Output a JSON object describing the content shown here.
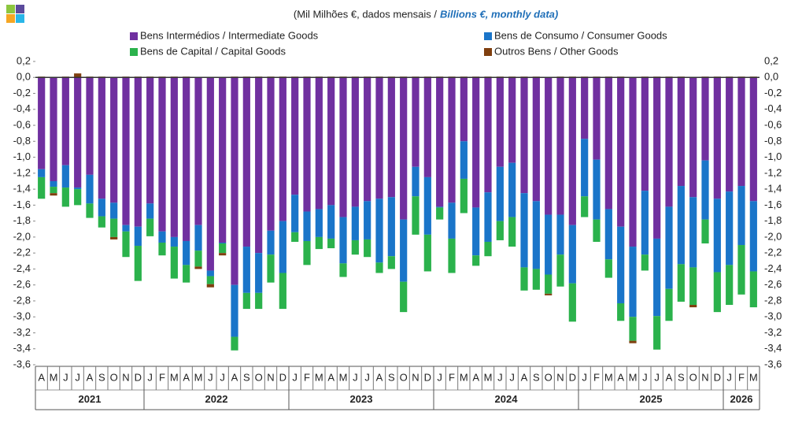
{
  "chart_data": {
    "type": "stacked-bar",
    "subtitle": "(Mil Milhões €, dados mensais /",
    "subtitle_en": "Billions €, monthly data)",
    "categories": [
      "A",
      "M",
      "J",
      "J",
      "A",
      "S",
      "O",
      "N",
      "D",
      "J",
      "F",
      "M",
      "A",
      "M",
      "J",
      "J",
      "A",
      "S",
      "O",
      "N",
      "D",
      "J",
      "F",
      "M",
      "A",
      "M",
      "J",
      "J",
      "A",
      "S",
      "O",
      "N",
      "D",
      "J",
      "F",
      "M",
      "A",
      "M",
      "J",
      "J",
      "A",
      "S",
      "O",
      "N",
      "D",
      "J",
      "F",
      "M",
      "A",
      "M",
      "J",
      "J",
      "A",
      "S",
      "O",
      "N",
      "D",
      "J",
      "F",
      "M"
    ],
    "years": [
      "2021",
      "2022",
      "2023",
      "2024",
      "2025",
      "2026"
    ],
    "series": [
      {
        "name": "Bens Intermédios / Intermediate Goods",
        "color": "#7030a0",
        "values": [
          -1.15,
          -1.3,
          -1.1,
          -1.38,
          -1.22,
          -1.52,
          -1.57,
          -1.85,
          -1.87,
          -1.58,
          -1.93,
          -2.0,
          -2.05,
          -1.85,
          -2.42,
          -2.07,
          -2.6,
          -2.12,
          -2.2,
          -1.92,
          -1.8,
          -1.47,
          -1.68,
          -1.65,
          -1.6,
          -1.75,
          -1.62,
          -1.55,
          -1.52,
          -1.5,
          -1.78,
          -1.12,
          -1.25,
          -1.62,
          -1.57,
          -0.8,
          -1.63,
          -1.44,
          -1.12,
          -1.07,
          -1.45,
          -1.55,
          -1.72,
          -1.72,
          -1.85,
          -0.77,
          -1.03,
          -1.65,
          -1.87,
          -2.12,
          -1.42,
          -2.02,
          -1.62,
          -1.36,
          -1.5,
          -1.04,
          -1.52,
          -1.43,
          -1.36,
          -1.55
        ]
      },
      {
        "name": "Bens de Consumo / Consumer Goods",
        "color": "#1a75c9",
        "values": [
          -0.1,
          -0.07,
          -0.28,
          -0.02,
          -0.36,
          -0.22,
          -0.2,
          -0.08,
          -0.24,
          -0.19,
          -0.14,
          -0.12,
          -0.3,
          -0.32,
          -0.07,
          -0.01,
          -0.65,
          -0.58,
          -0.5,
          -0.3,
          -0.65,
          -0.47,
          -0.37,
          -0.35,
          -0.42,
          -0.58,
          -0.42,
          -0.48,
          -0.8,
          -0.74,
          -0.78,
          -0.37,
          -0.72,
          -0.01,
          -0.45,
          -0.47,
          -0.6,
          -0.62,
          -0.68,
          -0.68,
          -0.93,
          -0.85,
          -0.75,
          -0.5,
          -0.73,
          -0.72,
          -0.75,
          -0.63,
          -0.96,
          -0.88,
          -0.8,
          -0.97,
          -1.03,
          -0.98,
          -0.88,
          -0.74,
          -0.92,
          -0.92,
          -0.74,
          -0.88
        ]
      },
      {
        "name": "Bens de Capital / Capital Goods",
        "color": "#2bb24c",
        "values": [
          -0.27,
          -0.08,
          -0.24,
          -0.2,
          -0.18,
          -0.14,
          -0.23,
          -0.32,
          -0.44,
          -0.22,
          -0.16,
          -0.4,
          -0.22,
          -0.2,
          -0.1,
          -0.12,
          -0.17,
          -0.2,
          -0.2,
          -0.35,
          -0.45,
          -0.12,
          -0.3,
          -0.15,
          -0.12,
          -0.17,
          -0.18,
          -0.22,
          -0.13,
          -0.16,
          -0.38,
          -0.48,
          -0.46,
          -0.15,
          -0.43,
          -0.43,
          -0.13,
          -0.18,
          -0.24,
          -0.37,
          -0.29,
          -0.26,
          -0.24,
          -0.4,
          -0.48,
          -0.26,
          -0.28,
          -0.23,
          -0.22,
          -0.3,
          -0.2,
          -0.42,
          -0.4,
          -0.47,
          -0.47,
          -0.3,
          -0.5,
          -0.5,
          -0.62,
          -0.45
        ]
      },
      {
        "name": "Outros Bens / Other Goods",
        "color": "#7f3f0f",
        "values": [
          0.01,
          -0.03,
          0.01,
          0.05,
          0.01,
          0.01,
          -0.03,
          0.01,
          0.01,
          0.01,
          0.01,
          0.01,
          0.01,
          -0.03,
          -0.04,
          -0.03,
          0.01,
          0.01,
          0.01,
          0.01,
          0.01,
          0.01,
          0.01,
          0.01,
          0.01,
          0.01,
          0.01,
          0.01,
          0.01,
          0.01,
          0.01,
          0.01,
          0.01,
          0.01,
          0.01,
          0.01,
          0.01,
          0.01,
          0.01,
          0.01,
          0.01,
          0.01,
          -0.02,
          0.01,
          0.01,
          0.01,
          0.01,
          0.01,
          0.01,
          -0.03,
          0.01,
          0.01,
          0.01,
          0.01,
          -0.03,
          0.01,
          0.01,
          0.01,
          0.01,
          0.01
        ]
      }
    ],
    "ylim": [
      -3.6,
      0.2
    ],
    "yticks": [
      {
        "value": 0.2,
        "label": "0,2"
      },
      {
        "value": 0,
        "label": "0,0"
      },
      {
        "value": -0.2,
        "label": "-0,2"
      },
      {
        "value": -0.4,
        "label": "-0,4"
      },
      {
        "value": -0.6,
        "label": "-0,6"
      },
      {
        "value": -0.8,
        "label": "-0,8"
      },
      {
        "value": -1.0,
        "label": "-1,0"
      },
      {
        "value": -1.2,
        "label": "-1,2"
      },
      {
        "value": -1.4,
        "label": "-1,4"
      },
      {
        "value": -1.6,
        "label": "-1,6"
      },
      {
        "value": -1.8,
        "label": "-1,8"
      },
      {
        "value": -2.0,
        "label": "-2,0"
      },
      {
        "value": -2.2,
        "label": "-2,2"
      },
      {
        "value": -2.4,
        "label": "-2,4"
      },
      {
        "value": -2.6,
        "label": "-2,6"
      },
      {
        "value": -2.8,
        "label": "-2,8"
      },
      {
        "value": -3.0,
        "label": "-3,0"
      },
      {
        "value": -3.2,
        "label": "-3,2"
      },
      {
        "value": -3.4,
        "label": "-3,4"
      },
      {
        "value": -3.6,
        "label": "-3,6"
      }
    ],
    "grid": false,
    "legend": "top"
  }
}
